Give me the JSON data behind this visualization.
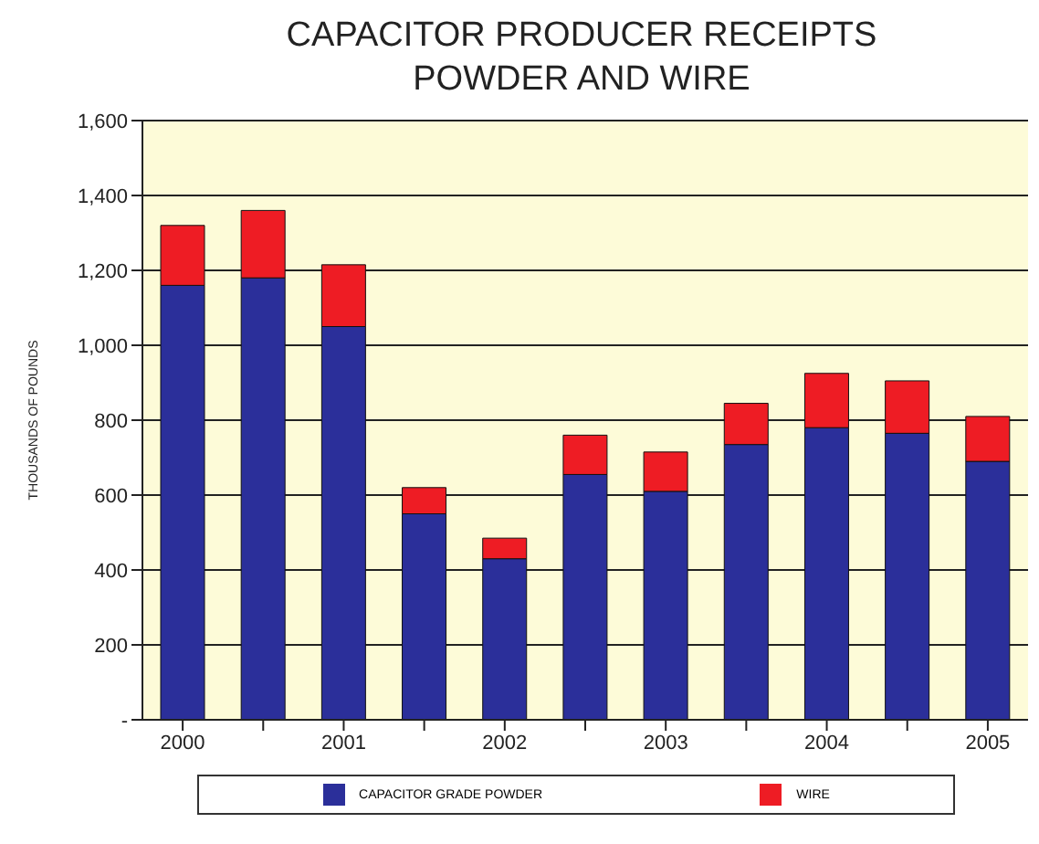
{
  "chart_data": {
    "type": "bar",
    "title": "CAPACITOR PRODUCER RECEIPTS\nPOWDER AND WIRE",
    "ylabel": "THOUSANDS OF POUNDS",
    "categories": [
      "2000",
      null,
      "2001",
      null,
      "2002",
      null,
      "2003",
      null,
      "2004",
      null,
      "2005"
    ],
    "stacked": true,
    "series": [
      {
        "name": "CAPACITOR GRADE POWDER",
        "color": "#2b2f9a",
        "values": [
          1160,
          1180,
          1050,
          550,
          430,
          655,
          610,
          735,
          780,
          765,
          690
        ]
      },
      {
        "name": "WIRE",
        "color": "#ee1c24",
        "values": [
          160,
          180,
          165,
          70,
          55,
          105,
          105,
          110,
          145,
          140,
          120
        ]
      }
    ],
    "ylim": [
      0,
      1600
    ],
    "yticks": [
      {
        "value": 0,
        "label": "-"
      },
      {
        "value": 200,
        "label": "200"
      },
      {
        "value": 400,
        "label": "400"
      },
      {
        "value": 600,
        "label": "600"
      },
      {
        "value": 800,
        "label": "800"
      },
      {
        "value": 1000,
        "label": "1,000"
      },
      {
        "value": 1200,
        "label": "1,200"
      },
      {
        "value": 1400,
        "label": "1,400"
      },
      {
        "value": 1600,
        "label": "1,600"
      }
    ],
    "grid": "y",
    "legend": "bottom"
  }
}
